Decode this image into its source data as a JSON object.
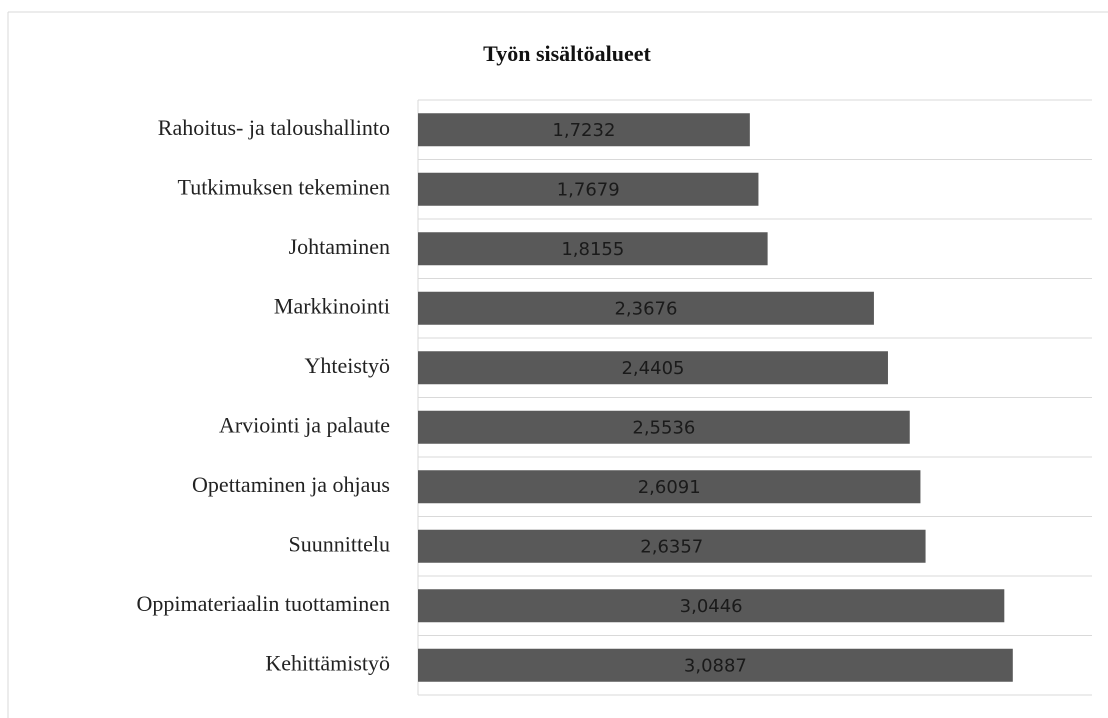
{
  "chart_data": {
    "type": "barh",
    "title": "Työn sisältöalueet",
    "categories": [
      "Rahoitus- ja taloushallinto",
      "Tutkimuksen tekeminen",
      "Johtaminen",
      "Markkinointi",
      "Yhteistyö",
      "Arviointi ja palaute",
      "Opettaminen ja ohjaus",
      "Suunnittelu",
      "Oppimateriaalin tuottaminen",
      "Kehittämistyö"
    ],
    "values": [
      1.7232,
      1.7679,
      1.8155,
      2.3676,
      2.4405,
      2.5536,
      2.6091,
      2.6357,
      3.0446,
      3.0887
    ],
    "value_labels": [
      "1,7232",
      "1,7679",
      "1,8155",
      "2,3676",
      "2,4405",
      "2,5536",
      "2,6091",
      "2,6357",
      "3,0446",
      "3,0887"
    ],
    "color": "#595959",
    "xlim": [
      0,
      3.5
    ]
  }
}
